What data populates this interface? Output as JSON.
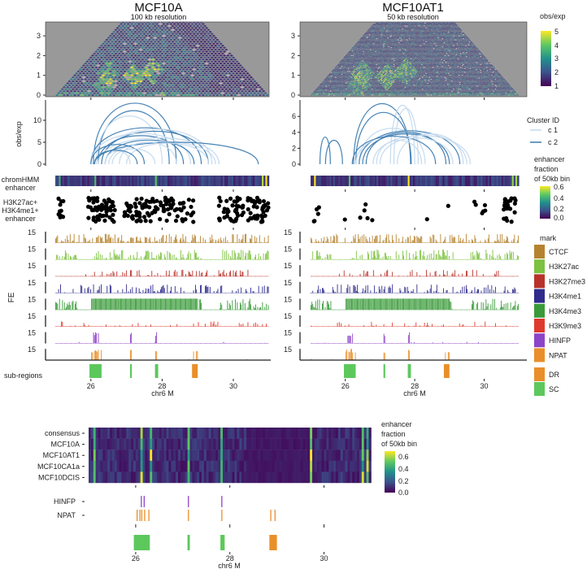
{
  "panels": [
    {
      "title": "MCF10A",
      "subtitle": "100 kb resolution"
    },
    {
      "title": "MCF10AT1",
      "subtitle": "50 kb resolution"
    }
  ],
  "labels": {
    "arc_ylabel": "obs/exp",
    "chromhmm": [
      "chromHMM",
      "enhancer"
    ],
    "dots": [
      "H3K27ac+",
      "H3K4me1+",
      "enhancer"
    ],
    "fe": "FE",
    "track_max": "15",
    "subregions": "sub-regions",
    "xlabel": "chr6 M"
  },
  "legends": {
    "hic": {
      "title": "obs/exp",
      "ticks": [
        "1",
        "2",
        "3",
        "4",
        "5"
      ]
    },
    "cluster": {
      "title": "Cluster ID",
      "items": [
        {
          "label": "c 1",
          "color": "#c6dbef"
        },
        {
          "label": "c 2",
          "color": "#4682b4"
        }
      ]
    },
    "enhancer": {
      "title": [
        "enhancer",
        "fraction",
        "of 50kb bin"
      ],
      "ticks": [
        "0.0",
        "0.2",
        "0.4",
        "0.6"
      ]
    },
    "mark": {
      "title": "mark",
      "items": [
        {
          "label": "CTCF",
          "color": "#b5832f"
        },
        {
          "label": "H3K27ac",
          "color": "#7cc13f"
        },
        {
          "label": "H3K27me3",
          "color": "#b8322a"
        },
        {
          "label": "H3K4me1",
          "color": "#2e2b8c"
        },
        {
          "label": "H3K4me3",
          "color": "#3a9a3a"
        },
        {
          "label": "H3K9me3",
          "color": "#df3a2d"
        },
        {
          "label": "HINFP",
          "color": "#8d45c8"
        },
        {
          "label": "NPAT",
          "color": "#e98f2a"
        }
      ]
    },
    "subregion": {
      "items": [
        {
          "label": "DR",
          "color": "#e98f2a"
        },
        {
          "label": "SC",
          "color": "#5cc85c"
        }
      ]
    }
  },
  "bottom": {
    "rows": [
      "consensus",
      "MCF10A",
      "MCF10AT1",
      "MCF10CA1a",
      "MCF10DCIS"
    ],
    "peak_rows": [
      "HINFP",
      "NPAT"
    ],
    "legend": {
      "title": [
        "enhancer",
        "fraction",
        "of 50kb bin"
      ],
      "ticks": [
        "0.0",
        "0.2",
        "0.4",
        "0.6"
      ]
    }
  },
  "chart_data": [
    {
      "type": "heatmap",
      "panels": [
        "MCF10A",
        "MCF10AT1"
      ],
      "xlim": [
        25,
        31
      ],
      "ylim": [
        0,
        3.6
      ],
      "yticks": [
        "0",
        "1",
        "2",
        "3"
      ],
      "xticks": [
        "26",
        "28",
        "30"
      ],
      "colorscale": "viridis",
      "color_range": [
        0.5,
        5
      ]
    },
    {
      "type": "line",
      "ylabel": "obs/exp",
      "xlim": [
        25,
        31
      ],
      "panels": [
        {
          "panel": "MCF10A",
          "ylim": [
            0,
            14
          ],
          "yticks": [
            "0",
            "5",
            "10"
          ],
          "arcs": [
            {
              "start": 26.07,
              "end": 28.4,
              "height": 13.9,
              "cluster": "c 2"
            },
            {
              "start": 26.2,
              "end": 28.2,
              "height": 12.2,
              "cluster": "c 2"
            },
            {
              "start": 26.15,
              "end": 28.0,
              "height": 11.0,
              "cluster": "c 1"
            },
            {
              "start": 26.0,
              "end": 29.1,
              "height": 8.3,
              "cluster": "c 2"
            },
            {
              "start": 26.3,
              "end": 29.4,
              "height": 8.0,
              "cluster": "c 1"
            },
            {
              "start": 26.3,
              "end": 29.3,
              "height": 7.5,
              "cluster": "c 2"
            },
            {
              "start": 26.0,
              "end": 28.8,
              "height": 7.0,
              "cluster": "c 1"
            },
            {
              "start": 26.2,
              "end": 28.6,
              "height": 6.5,
              "cluster": "c 2"
            },
            {
              "start": 26.2,
              "end": 29.6,
              "height": 6.0,
              "cluster": "c 1"
            },
            {
              "start": 26.4,
              "end": 28.9,
              "height": 5.5,
              "cluster": "c 2"
            },
            {
              "start": 26.5,
              "end": 29.5,
              "height": 5.2,
              "cluster": "c 1"
            },
            {
              "start": 26.1,
              "end": 30.7,
              "height": 5.0,
              "cluster": "c 2"
            },
            {
              "start": 26.8,
              "end": 28.4,
              "height": 5.0,
              "cluster": "c 1"
            },
            {
              "start": 27.0,
              "end": 29.3,
              "height": 4.8,
              "cluster": "c 1"
            },
            {
              "start": 26.0,
              "end": 27.5,
              "height": 4.5,
              "cluster": "c 2"
            },
            {
              "start": 26.6,
              "end": 27.8,
              "height": 3.5,
              "cluster": "c 1"
            },
            {
              "start": 26.4,
              "end": 27.1,
              "height": 3.0,
              "cluster": "c 1"
            },
            {
              "start": 26.1,
              "end": 27.3,
              "height": 3.2,
              "cluster": "c 2"
            }
          ]
        },
        {
          "panel": "MCF10AT1",
          "ylim": [
            0,
            7.8
          ],
          "yticks": [
            "0",
            "2",
            "4",
            "6"
          ],
          "arcs": [
            {
              "start": 25.27,
              "end": 25.57,
              "height": 3.4,
              "cluster": "c 2"
            },
            {
              "start": 25.43,
              "end": 25.92,
              "height": 3.0,
              "cluster": "c 2"
            },
            {
              "start": 26.24,
              "end": 27.88,
              "height": 7.6,
              "cluster": "c 2"
            },
            {
              "start": 27.3,
              "end": 28.0,
              "height": 7.4,
              "cluster": "c 1"
            },
            {
              "start": 27.4,
              "end": 28.1,
              "height": 7.0,
              "cluster": "c 1"
            },
            {
              "start": 26.3,
              "end": 27.9,
              "height": 6.5,
              "cluster": "c 2"
            },
            {
              "start": 26.4,
              "end": 28.3,
              "height": 4.5,
              "cluster": "c 1"
            },
            {
              "start": 26.4,
              "end": 29.3,
              "height": 4.2,
              "cluster": "c 2"
            },
            {
              "start": 26.3,
              "end": 29.5,
              "height": 4.0,
              "cluster": "c 1"
            },
            {
              "start": 26.6,
              "end": 28.9,
              "height": 4.0,
              "cluster": "c 2"
            },
            {
              "start": 26.5,
              "end": 29.0,
              "height": 3.8,
              "cluster": "c 2"
            },
            {
              "start": 27.5,
              "end": 29.4,
              "height": 3.8,
              "cluster": "c 1"
            },
            {
              "start": 26.8,
              "end": 29.6,
              "height": 3.6,
              "cluster": "c 1"
            },
            {
              "start": 26.2,
              "end": 28.6,
              "height": 3.5,
              "cluster": "c 2"
            },
            {
              "start": 27.0,
              "end": 29.1,
              "height": 3.3,
              "cluster": "c 1"
            },
            {
              "start": 26.9,
              "end": 28.2,
              "height": 3.0,
              "cluster": "c 1"
            }
          ]
        }
      ]
    },
    {
      "type": "scatter",
      "panels": [
        {
          "panel": "MCF10A",
          "clusters": [
            {
              "center": 25.18,
              "spread": 0.2,
              "count": 12
            },
            {
              "center": 26.3,
              "spread": 0.75,
              "count": 55
            },
            {
              "center": 27.4,
              "spread": 0.95,
              "count": 55
            },
            {
              "center": 28.4,
              "spread": 1.0,
              "count": 45
            },
            {
              "center": 29.9,
              "spread": 0.8,
              "count": 40
            },
            {
              "center": 30.7,
              "spread": 0.6,
              "count": 40
            }
          ]
        },
        {
          "panel": "MCF10AT1",
          "clusters": [
            {
              "center": 25.16,
              "spread": 0.2,
              "count": 5
            },
            {
              "center": 25.98,
              "spread": 0.02,
              "count": 1
            },
            {
              "center": 26.52,
              "spread": 0.25,
              "count": 4
            },
            {
              "center": 26.78,
              "spread": 0.02,
              "count": 1
            },
            {
              "center": 28.35,
              "spread": 0.02,
              "count": 1
            },
            {
              "center": 28.96,
              "spread": 0.02,
              "count": 1
            },
            {
              "center": 29.73,
              "spread": 0.1,
              "count": 2
            },
            {
              "center": 30.03,
              "spread": 0.25,
              "count": 4
            },
            {
              "center": 30.74,
              "spread": 0.35,
              "count": 25
            }
          ]
        }
      ]
    },
    {
      "type": "bar",
      "ylabel": "FE",
      "ylim": [
        0,
        15
      ],
      "xlim": [
        25,
        31
      ],
      "series": [
        "CTCF",
        "H3K27ac",
        "H3K27me3",
        "H3K4me1",
        "H3K4me3",
        "H3K9me3",
        "HINFP",
        "NPAT"
      ],
      "peaks": {
        "HINFP": [
          26.08,
          26.13,
          26.2,
          27.12,
          27.83
        ],
        "NPAT": [
          26.03,
          26.09,
          26.13,
          26.19,
          26.28,
          27.12,
          27.83,
          28.87,
          28.96
        ]
      }
    },
    {
      "type": "bar",
      "xlim": [
        25,
        31
      ],
      "xticks": [
        "26",
        "28",
        "30"
      ],
      "xlabel": "chr6 M",
      "regions": [
        {
          "start": 25.96,
          "end": 26.3,
          "type": "SC"
        },
        {
          "start": 27.1,
          "end": 27.15,
          "type": "SC"
        },
        {
          "start": 27.8,
          "end": 27.89,
          "type": "SC"
        },
        {
          "start": 28.84,
          "end": 29.0,
          "type": "DR"
        }
      ]
    },
    {
      "type": "heatmap",
      "rows": [
        "consensus",
        "MCF10A",
        "MCF10AT1",
        "MCF10CA1a",
        "MCF10DCIS"
      ],
      "xlim": [
        25,
        31
      ],
      "color_range": [
        0,
        0.7
      ],
      "colorscale": "viridis",
      "hotspots": [
        25.1,
        26.1,
        26.3,
        27.1,
        27.8,
        29.7,
        30.8,
        30.9
      ]
    },
    {
      "type": "scatter",
      "rows": [
        "HINFP",
        "NPAT"
      ],
      "HINFP": [
        26.12,
        26.18,
        27.12,
        27.83
      ],
      "NPAT": [
        26.03,
        26.09,
        26.13,
        26.19,
        26.28,
        27.12,
        27.83,
        28.87,
        28.96
      ]
    }
  ]
}
